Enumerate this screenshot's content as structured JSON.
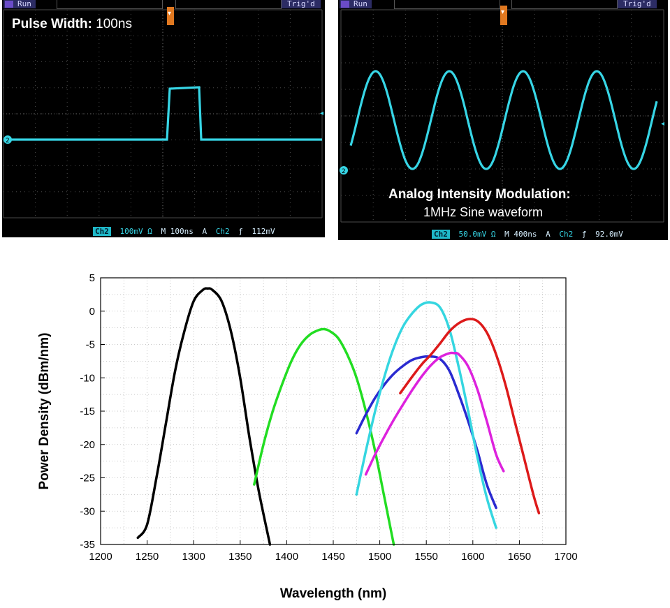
{
  "scope_left": {
    "run_label": "Run",
    "trig_label": "Trig'd",
    "overlay_title": "Pulse Width:",
    "overlay_value": "100ns",
    "status": {
      "channel": "Ch2",
      "scale": "100mV Ω",
      "timebase": "M 100ns",
      "trigger_mode": "A",
      "trigger_channel": "Ch2",
      "trigger_slope": "ƒ",
      "trigger_level": "112mV"
    },
    "trace_color": "#37d6e6"
  },
  "scope_right": {
    "run_label": "Run",
    "trig_label": "Trig'd",
    "overlay_title": "Analog Intensity Modulation:",
    "overlay_sub": "1MHz Sine waveform",
    "status": {
      "channel": "Ch2",
      "scale": "50.0mV Ω",
      "timebase": "M 400ns",
      "trigger_mode": "A",
      "trigger_channel": "Ch2",
      "trigger_slope": "ƒ",
      "trigger_level": "92.0mV"
    },
    "trace_color": "#37d6e6"
  },
  "chart_data": {
    "type": "line",
    "title": "",
    "xlabel": "Wavelength (nm)",
    "ylabel": "Power Density (dBm/nm)",
    "xlim": [
      1200,
      1700
    ],
    "ylim": [
      -35,
      5
    ],
    "xticks": [
      1200,
      1250,
      1300,
      1350,
      1400,
      1450,
      1500,
      1550,
      1600,
      1650,
      1700
    ],
    "yticks": [
      5,
      0,
      -5,
      -10,
      -15,
      -20,
      -25,
      -30,
      -35
    ],
    "grid": true,
    "series": [
      {
        "color": "#000000",
        "x": [
          1240,
          1250,
          1260,
          1270,
          1280,
          1290,
          1300,
          1310,
          1315,
          1320,
          1330,
          1340,
          1350,
          1360,
          1370,
          1382
        ],
        "y": [
          -34,
          -32,
          -25,
          -17,
          -9,
          -3,
          1.5,
          3.2,
          3.4,
          3.2,
          1.5,
          -3,
          -10,
          -19,
          -27,
          -35
        ]
      },
      {
        "color": "#22dd22",
        "x": [
          1365,
          1375,
          1385,
          1395,
          1405,
          1415,
          1425,
          1435,
          1440,
          1445,
          1455,
          1465,
          1475,
          1485,
          1495,
          1505,
          1515
        ],
        "y": [
          -26,
          -20,
          -15,
          -11,
          -7.5,
          -5,
          -3.5,
          -2.8,
          -2.7,
          -2.9,
          -4,
          -6.5,
          -10,
          -15,
          -21,
          -28,
          -35
        ]
      },
      {
        "color": "#2a2ad0",
        "x": [
          1475,
          1485,
          1495,
          1505,
          1515,
          1525,
          1535,
          1545,
          1555,
          1565,
          1575,
          1585,
          1595,
          1605,
          1615,
          1625
        ],
        "y": [
          -18.3,
          -15.5,
          -13,
          -11,
          -9.4,
          -8.2,
          -7.3,
          -6.9,
          -6.8,
          -7.2,
          -9,
          -12.5,
          -16.5,
          -21,
          -26,
          -29.5
        ]
      },
      {
        "color": "#35d6e0",
        "x": [
          1475,
          1485,
          1495,
          1505,
          1515,
          1525,
          1535,
          1545,
          1555,
          1565,
          1575,
          1585,
          1595,
          1605,
          1615,
          1625
        ],
        "y": [
          -27.5,
          -21,
          -15,
          -9.8,
          -5.5,
          -2.3,
          -0.3,
          1,
          1.3,
          0.5,
          -2.8,
          -8.5,
          -15,
          -22,
          -28,
          -32.5
        ]
      },
      {
        "color": "#dd22dd",
        "x": [
          1485,
          1495,
          1505,
          1515,
          1525,
          1535,
          1545,
          1555,
          1565,
          1575,
          1580,
          1585,
          1595,
          1605,
          1615,
          1625,
          1633
        ],
        "y": [
          -24.5,
          -21.5,
          -18.8,
          -16.3,
          -14,
          -11.8,
          -9.8,
          -8.1,
          -6.9,
          -6.3,
          -6.3,
          -6.5,
          -8.3,
          -11.8,
          -16.5,
          -21.5,
          -24
        ]
      },
      {
        "color": "#dd1a1a",
        "x": [
          1522,
          1535,
          1545,
          1555,
          1565,
          1575,
          1585,
          1595,
          1605,
          1615,
          1625,
          1635,
          1645,
          1655,
          1665,
          1671
        ],
        "y": [
          -12.3,
          -9.8,
          -8,
          -6.5,
          -4.8,
          -3,
          -1.8,
          -1.2,
          -1.5,
          -3.2,
          -6.5,
          -11,
          -16.5,
          -22,
          -27.5,
          -30.3
        ]
      }
    ]
  }
}
